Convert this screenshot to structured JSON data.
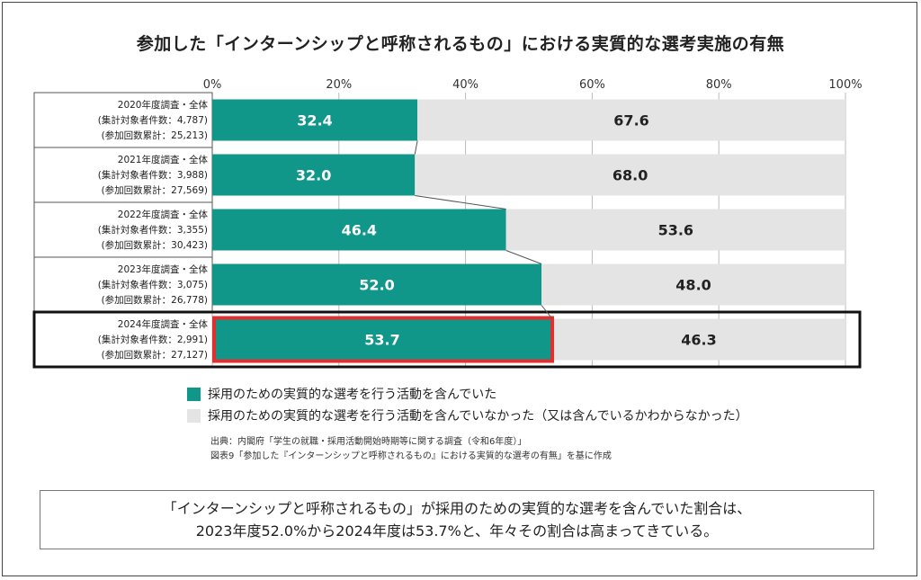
{
  "title": "参加した「インターンシップと呼称されるもの」における実質的な選考実施の有無",
  "chart_data": {
    "type": "bar",
    "orientation": "horizontal",
    "stacked": true,
    "normalized": true,
    "xlim": [
      0,
      100
    ],
    "x_ticks": [
      "0%",
      "20%",
      "40%",
      "60%",
      "80%",
      "100%"
    ],
    "categories": [
      [
        "2020年度調査・全体",
        "(集計対象者件数：4,787)",
        "(参加回数累計：25,213)"
      ],
      [
        "2021年度調査・全体",
        "(集計対象者件数：3,988)",
        "(参加回数累計：27,569)"
      ],
      [
        "2022年度調査・全体",
        "(集計対象者件数：3,355)",
        "(参加回数累計：30,423)"
      ],
      [
        "2023年度調査・全体",
        "(集計対象者件数：3,075)",
        "(参加回数累計：26,778)"
      ],
      [
        "2024年度調査・全体",
        "(集計対象者件数：2,991)",
        "(参加回数累計：27,127)"
      ]
    ],
    "series": [
      {
        "name": "採用のための実質的な選考を行う活動を含んでいた",
        "color": "#11968a",
        "values": [
          32.4,
          32.0,
          46.4,
          52.0,
          53.7
        ]
      },
      {
        "name": "採用のための実質的な選考を行う活動を含んでいなかった（又は含んでいるかわからなかった）",
        "color": "#e4e4e4",
        "values": [
          67.6,
          68.0,
          53.6,
          48.0,
          46.3
        ]
      }
    ],
    "data_labels": [
      [
        "32.4",
        "32.0",
        "46.4",
        "52.0",
        "53.7"
      ],
      [
        "67.6",
        "68.0",
        "53.6",
        "48.0",
        "46.3"
      ]
    ],
    "highlight_index": 4,
    "highlight_color": "#e03030",
    "grid": true,
    "legend_position": "bottom-left"
  },
  "source": {
    "line1": "出典：内閣府「学生の就職・採用活動開始時期等に関する調査（令和6年度）」",
    "line2": "図表9「参加した『インターンシップと呼称されるもの』における実質的な選考の有無」を基に作成"
  },
  "summary": {
    "line1": "「インターンシップと呼称されるもの」が採用のための実質的な選考を含んでいた割合は、",
    "line2": "2023年度52.0%から2024年度は53.7%と、年々その割合は高まってきている。"
  }
}
